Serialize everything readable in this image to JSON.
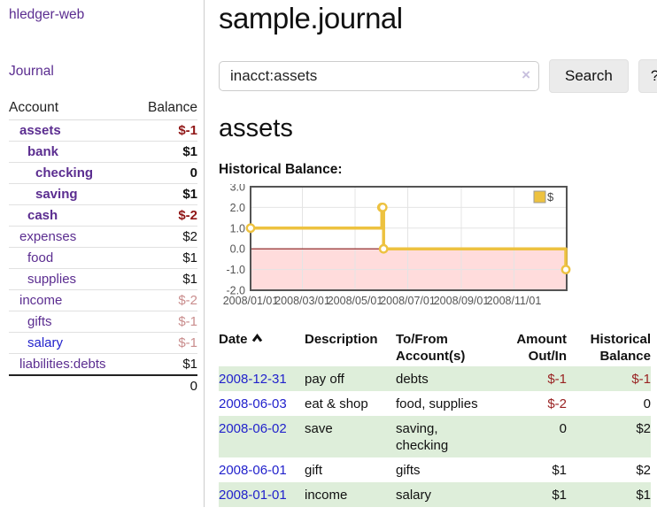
{
  "colors": {
    "link_purple": "#5b2d90",
    "link_blue": "#2222cc",
    "negative_strong": "#901616",
    "negative_soft": "#c98d8d",
    "row_green": "#deeeda",
    "button_bg": "#ebebeb"
  },
  "sidebar": {
    "brand": "hledger-web",
    "nav": "Journal",
    "account_header": "Account",
    "balance_header": "Balance",
    "accounts": [
      {
        "name": "assets",
        "depth": 1,
        "balance": "$-1",
        "bold": true,
        "neg": "strong",
        "link": "purple"
      },
      {
        "name": "bank",
        "depth": 2,
        "balance": "$1",
        "bold": true,
        "neg": "",
        "link": "purple"
      },
      {
        "name": "checking",
        "depth": 3,
        "balance": "0",
        "bold": true,
        "neg": "",
        "link": "purple"
      },
      {
        "name": "saving",
        "depth": 3,
        "balance": "$1",
        "bold": true,
        "neg": "",
        "link": "purple"
      },
      {
        "name": "cash",
        "depth": 2,
        "balance": "$-2",
        "bold": true,
        "neg": "strong",
        "link": "purple"
      },
      {
        "name": "expenses",
        "depth": 1,
        "balance": "$2",
        "bold": false,
        "neg": "",
        "link": "purple"
      },
      {
        "name": "food",
        "depth": 2,
        "balance": "$1",
        "bold": false,
        "neg": "",
        "link": "purple"
      },
      {
        "name": "supplies",
        "depth": 2,
        "balance": "$1",
        "bold": false,
        "neg": "",
        "link": "purple"
      },
      {
        "name": "income",
        "depth": 1,
        "balance": "$-2",
        "bold": false,
        "neg": "soft",
        "link": "purple"
      },
      {
        "name": "gifts",
        "depth": 2,
        "balance": "$-1",
        "bold": false,
        "neg": "soft",
        "link": "purple"
      },
      {
        "name": "salary",
        "depth": 2,
        "balance": "$-1",
        "bold": false,
        "neg": "soft",
        "link": "blue"
      },
      {
        "name": "liabilities:debts",
        "depth": 1,
        "balance": "$1",
        "bold": false,
        "neg": "",
        "link": "purple"
      }
    ],
    "total": "0"
  },
  "main": {
    "title": "sample.journal",
    "search": {
      "value": "inacct:assets",
      "clear": "×",
      "search_button": "Search",
      "help_button": "?"
    },
    "account_title": "assets",
    "chart_label": "Historical Balance:"
  },
  "chart_data": {
    "type": "line",
    "title": "Historical Balance:",
    "step": true,
    "ylim": [
      -2,
      3
    ],
    "xlim_days": [
      0,
      366
    ],
    "series": [
      {
        "name": "$",
        "color": "#edc240",
        "dates": [
          "2008-01-01",
          "2008-06-01",
          "2008-06-02",
          "2008-06-03",
          "2008-12-31"
        ],
        "days": [
          0,
          152,
          153,
          154,
          365
        ],
        "values": [
          1,
          2,
          2,
          0,
          -1
        ]
      }
    ],
    "x_ticks": [
      {
        "day": 0,
        "label": "2008/01/01"
      },
      {
        "day": 60,
        "label": "2008/03/01"
      },
      {
        "day": 121,
        "label": "2008/05/01"
      },
      {
        "day": 182,
        "label": "2008/07/01"
      },
      {
        "day": 244,
        "label": "2008/09/01"
      },
      {
        "day": 305,
        "label": "2008/11/01"
      }
    ],
    "y_ticks": [
      {
        "v": 3,
        "label": "3.0"
      },
      {
        "v": 2,
        "label": "2.0"
      },
      {
        "v": 1,
        "label": "1.0"
      },
      {
        "v": 0,
        "label": "0.0"
      },
      {
        "v": -1,
        "label": "-1.0"
      },
      {
        "v": -2,
        "label": "-2.0"
      }
    ],
    "legend": {
      "label": "$",
      "position": "top-right"
    },
    "colors": {
      "negative_region": "#ffdcdc",
      "zero_line": "#8b1a1a",
      "plot_border": "#545454",
      "grid": "#e4e4e4",
      "tick_text": "#545454"
    }
  },
  "register": {
    "headers": {
      "date": "Date",
      "description": "Description",
      "accounts": "To/From Account(s)",
      "amount": "Amount Out/In",
      "balance": "Historical Balance"
    },
    "rows": [
      {
        "date": "2008-12-31",
        "description": "pay off",
        "accounts": "debts",
        "amount": "$-1",
        "balance": "$-1",
        "shade": true
      },
      {
        "date": "2008-06-03",
        "description": "eat & shop",
        "accounts": "food, supplies",
        "amount": "$-2",
        "balance": "0",
        "shade": false
      },
      {
        "date": "2008-06-02",
        "description": "save",
        "accounts": "saving, checking",
        "amount": "0",
        "balance": "$2",
        "shade": true
      },
      {
        "date": "2008-06-01",
        "description": "gift",
        "accounts": "gifts",
        "amount": "$1",
        "balance": "$2",
        "shade": false
      },
      {
        "date": "2008-01-01",
        "description": "income",
        "accounts": "salary",
        "amount": "$1",
        "balance": "$1",
        "shade": true
      }
    ]
  }
}
